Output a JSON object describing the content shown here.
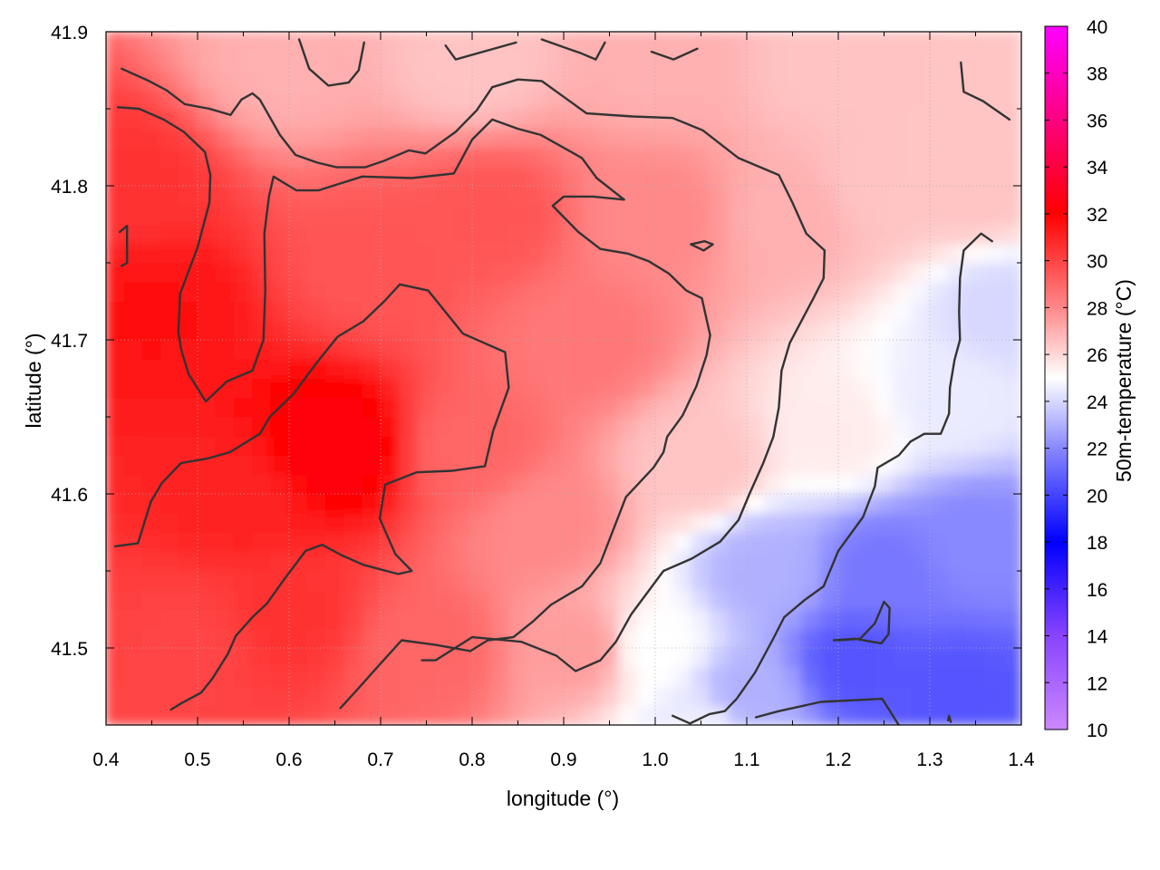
{
  "chart_data": {
    "type": "heatmap",
    "title": "",
    "xlabel": "longitude (°)",
    "ylabel": "latitude (°)",
    "colorbar_label": "50m-temperature (°C)",
    "xlim": [
      0.4,
      1.4
    ],
    "ylim": [
      41.45,
      41.9
    ],
    "x_ticks": [
      0.4,
      0.5,
      0.6,
      0.7,
      0.8,
      0.9,
      1.0,
      1.1,
      1.2,
      1.3,
      1.4
    ],
    "x_tick_labels": [
      "0.4",
      "0.5",
      "0.6",
      "0.7",
      "0.8",
      "0.9",
      "1.0",
      "1.1",
      "1.2",
      "1.3",
      "1.4"
    ],
    "y_ticks": [
      41.5,
      41.6,
      41.7,
      41.8,
      41.9
    ],
    "y_tick_labels": [
      "41.5",
      "41.6",
      "41.7",
      "41.8",
      "41.9"
    ],
    "colorbar_range": [
      10,
      40
    ],
    "colorbar_ticks": [
      10,
      12,
      14,
      16,
      18,
      20,
      22,
      24,
      26,
      28,
      30,
      32,
      34,
      36,
      38,
      40
    ],
    "colorbar_tick_labels": [
      "10",
      "12",
      "14",
      "16",
      "18",
      "20",
      "22",
      "24",
      "26",
      "28",
      "30",
      "32",
      "34",
      "36",
      "38",
      "40"
    ],
    "grid": true,
    "colormap": [
      {
        "value": 10,
        "color": "#cc88ff"
      },
      {
        "value": 14,
        "color": "#8844ff"
      },
      {
        "value": 18,
        "color": "#0000ff"
      },
      {
        "value": 22,
        "color": "#8888ff"
      },
      {
        "value": 25,
        "color": "#ffffff"
      },
      {
        "value": 28,
        "color": "#ff8888"
      },
      {
        "value": 32,
        "color": "#ff0000"
      },
      {
        "value": 36,
        "color": "#ff0080"
      },
      {
        "value": 40,
        "color": "#ff00ff"
      }
    ],
    "field_samples": [
      {
        "lon": 0.45,
        "lat": 41.72,
        "t": 31.5
      },
      {
        "lon": 0.42,
        "lat": 41.8,
        "t": 30.5
      },
      {
        "lon": 0.55,
        "lat": 41.6,
        "t": 31
      },
      {
        "lon": 0.65,
        "lat": 41.63,
        "t": 32.5
      },
      {
        "lon": 0.6,
        "lat": 41.52,
        "t": 30.5
      },
      {
        "lon": 0.5,
        "lat": 41.5,
        "t": 30
      },
      {
        "lon": 0.7,
        "lat": 41.75,
        "t": 29.5
      },
      {
        "lon": 0.82,
        "lat": 41.78,
        "t": 29.5
      },
      {
        "lon": 0.8,
        "lat": 41.63,
        "t": 29
      },
      {
        "lon": 0.92,
        "lat": 41.7,
        "t": 28.5
      },
      {
        "lon": 0.88,
        "lat": 41.58,
        "t": 28
      },
      {
        "lon": 0.75,
        "lat": 41.5,
        "t": 29
      },
      {
        "lon": 0.92,
        "lat": 41.5,
        "t": 27.5
      },
      {
        "lon": 1.0,
        "lat": 41.78,
        "t": 28
      },
      {
        "lon": 1.05,
        "lat": 41.62,
        "t": 26.5
      },
      {
        "lon": 1.0,
        "lat": 41.5,
        "t": 25
      },
      {
        "lon": 1.15,
        "lat": 41.78,
        "t": 27
      },
      {
        "lon": 1.25,
        "lat": 41.8,
        "t": 26.5
      },
      {
        "lon": 1.35,
        "lat": 41.8,
        "t": 26.5
      },
      {
        "lon": 0.6,
        "lat": 41.88,
        "t": 27
      },
      {
        "lon": 0.8,
        "lat": 41.88,
        "t": 26.5
      },
      {
        "lon": 1.0,
        "lat": 41.88,
        "t": 27
      },
      {
        "lon": 1.2,
        "lat": 41.88,
        "t": 26.5
      },
      {
        "lon": 1.38,
        "lat": 41.72,
        "t": 24
      },
      {
        "lon": 1.32,
        "lat": 41.66,
        "t": 24.5
      },
      {
        "lon": 1.2,
        "lat": 41.64,
        "t": 25.5
      },
      {
        "lon": 1.12,
        "lat": 41.55,
        "t": 23
      },
      {
        "lon": 1.25,
        "lat": 41.55,
        "t": 21.5
      },
      {
        "lon": 1.35,
        "lat": 41.57,
        "t": 22
      },
      {
        "lon": 1.22,
        "lat": 41.49,
        "t": 20.5
      },
      {
        "lon": 1.1,
        "lat": 41.47,
        "t": 23
      },
      {
        "lon": 1.33,
        "lat": 41.47,
        "t": 20.5
      },
      {
        "lon": 1.05,
        "lat": 41.45,
        "t": 24.5
      }
    ],
    "contours": [
      [
        [
          0.417,
          41.876
        ],
        [
          0.447,
          41.868
        ],
        [
          0.466,
          41.862
        ],
        [
          0.486,
          41.853
        ],
        [
          0.513,
          41.85
        ],
        [
          0.536,
          41.846
        ],
        [
          0.548,
          41.856
        ],
        [
          0.56,
          41.86
        ],
        [
          0.568,
          41.856
        ],
        [
          0.59,
          41.833
        ],
        [
          0.607,
          41.82
        ],
        [
          0.631,
          41.815
        ],
        [
          0.652,
          41.812
        ],
        [
          0.683,
          41.812
        ],
        [
          0.703,
          41.816
        ],
        [
          0.731,
          41.823
        ],
        [
          0.749,
          41.821
        ],
        [
          0.782,
          41.835
        ],
        [
          0.805,
          41.849
        ],
        [
          0.822,
          41.864
        ],
        [
          0.85,
          41.869
        ],
        [
          0.876,
          41.868
        ],
        [
          0.897,
          41.859
        ],
        [
          0.925,
          41.847
        ],
        [
          0.975,
          41.845
        ],
        [
          1.019,
          41.844
        ],
        [
          1.052,
          41.836
        ],
        [
          1.091,
          41.818
        ],
        [
          1.135,
          41.807
        ],
        [
          1.15,
          41.789
        ],
        [
          1.165,
          41.769
        ],
        [
          1.185,
          41.758
        ],
        [
          1.184,
          41.74
        ],
        [
          1.172,
          41.726
        ],
        [
          1.147,
          41.698
        ],
        [
          1.138,
          41.68
        ],
        [
          1.135,
          41.656
        ],
        [
          1.129,
          41.637
        ],
        [
          1.118,
          41.62
        ],
        [
          1.103,
          41.6
        ],
        [
          1.091,
          41.583
        ],
        [
          1.071,
          41.569
        ],
        [
          1.04,
          41.558
        ],
        [
          1.009,
          41.55
        ],
        [
          0.974,
          41.522
        ],
        [
          0.957,
          41.504
        ],
        [
          0.94,
          41.492
        ],
        [
          0.913,
          41.485
        ],
        [
          0.892,
          41.495
        ],
        [
          0.854,
          41.504
        ],
        [
          0.819,
          41.506
        ],
        [
          0.8,
          41.507
        ],
        [
          0.76,
          41.492
        ],
        [
          0.745,
          41.492
        ]
      ],
      [
        [
          0.413,
          41.851
        ],
        [
          0.436,
          41.85
        ],
        [
          0.463,
          41.843
        ],
        [
          0.485,
          41.835
        ],
        [
          0.508,
          41.822
        ],
        [
          0.514,
          41.807
        ],
        [
          0.513,
          41.789
        ],
        [
          0.5,
          41.76
        ],
        [
          0.481,
          41.73
        ],
        [
          0.479,
          41.705
        ],
        [
          0.482,
          41.694
        ],
        [
          0.49,
          41.678
        ],
        [
          0.509,
          41.66
        ],
        [
          0.532,
          41.673
        ],
        [
          0.56,
          41.68
        ],
        [
          0.572,
          41.7
        ],
        [
          0.574,
          41.732
        ],
        [
          0.573,
          41.769
        ],
        [
          0.578,
          41.793
        ],
        [
          0.583,
          41.806
        ],
        [
          0.608,
          41.797
        ],
        [
          0.632,
          41.797
        ],
        [
          0.68,
          41.806
        ],
        [
          0.734,
          41.805
        ],
        [
          0.78,
          41.808
        ],
        [
          0.8,
          41.83
        ],
        [
          0.822,
          41.843
        ],
        [
          0.85,
          41.837
        ],
        [
          0.875,
          41.833
        ],
        [
          0.92,
          41.818
        ],
        [
          0.936,
          41.805
        ],
        [
          0.966,
          41.791
        ],
        [
          0.932,
          41.793
        ],
        [
          0.9,
          41.793
        ],
        [
          0.888,
          41.787
        ],
        [
          0.916,
          41.77
        ],
        [
          0.94,
          41.759
        ],
        [
          0.97,
          41.756
        ],
        [
          0.993,
          41.751
        ],
        [
          1.015,
          41.743
        ],
        [
          1.034,
          41.732
        ],
        [
          1.051,
          41.727
        ],
        [
          1.06,
          41.703
        ],
        [
          1.056,
          41.69
        ],
        [
          1.045,
          41.67
        ],
        [
          1.03,
          41.651
        ],
        [
          1.013,
          41.637
        ],
        [
          1.009,
          41.627
        ],
        [
          0.998,
          41.617
        ],
        [
          0.968,
          41.598
        ],
        [
          0.94,
          41.555
        ],
        [
          0.92,
          41.54
        ],
        [
          0.886,
          41.528
        ],
        [
          0.866,
          41.517
        ],
        [
          0.845,
          41.507
        ],
        [
          0.817,
          41.505
        ],
        [
          0.798,
          41.498
        ],
        [
          0.76,
          41.502
        ],
        [
          0.723,
          41.505
        ],
        [
          0.697,
          41.488
        ],
        [
          0.67,
          41.47
        ],
        [
          0.656,
          41.461
        ]
      ],
      [
        [
          0.41,
          41.566
        ],
        [
          0.435,
          41.568
        ],
        [
          0.449,
          41.595
        ],
        [
          0.461,
          41.607
        ],
        [
          0.482,
          41.62
        ],
        [
          0.511,
          41.623
        ],
        [
          0.535,
          41.627
        ],
        [
          0.568,
          41.639
        ],
        [
          0.579,
          41.65
        ],
        [
          0.605,
          41.665
        ],
        [
          0.63,
          41.685
        ],
        [
          0.653,
          41.702
        ],
        [
          0.681,
          41.712
        ],
        [
          0.704,
          41.725
        ],
        [
          0.721,
          41.736
        ],
        [
          0.752,
          41.732
        ],
        [
          0.79,
          41.704
        ],
        [
          0.836,
          41.692
        ],
        [
          0.84,
          41.669
        ],
        [
          0.823,
          41.641
        ],
        [
          0.814,
          41.618
        ],
        [
          0.778,
          41.615
        ],
        [
          0.739,
          41.614
        ],
        [
          0.705,
          41.606
        ],
        [
          0.699,
          41.584
        ],
        [
          0.716,
          41.561
        ],
        [
          0.734,
          41.55
        ],
        [
          0.719,
          41.548
        ],
        [
          0.681,
          41.554
        ],
        [
          0.658,
          41.56
        ],
        [
          0.636,
          41.567
        ],
        [
          0.618,
          41.563
        ],
        [
          0.594,
          41.544
        ],
        [
          0.576,
          41.529
        ],
        [
          0.56,
          41.52
        ],
        [
          0.542,
          41.508
        ],
        [
          0.533,
          41.496
        ],
        [
          0.516,
          41.48
        ],
        [
          0.504,
          41.471
        ],
        [
          0.482,
          41.464
        ],
        [
          0.471,
          41.46
        ]
      ],
      [
        [
          0.415,
          41.77
        ],
        [
          0.423,
          41.774
        ],
        [
          0.423,
          41.75
        ],
        [
          0.417,
          41.748
        ]
      ],
      [
        [
          0.611,
          41.895
        ],
        [
          0.622,
          41.876
        ],
        [
          0.643,
          41.865
        ],
        [
          0.665,
          41.867
        ],
        [
          0.676,
          41.875
        ],
        [
          0.682,
          41.893
        ]
      ],
      [
        [
          0.771,
          41.891
        ],
        [
          0.782,
          41.882
        ],
        [
          0.818,
          41.888
        ],
        [
          0.848,
          41.893
        ]
      ],
      [
        [
          0.876,
          41.895
        ],
        [
          0.919,
          41.886
        ],
        [
          0.935,
          41.882
        ],
        [
          0.945,
          41.893
        ]
      ],
      [
        [
          0.996,
          41.887
        ],
        [
          1.02,
          41.882
        ],
        [
          1.046,
          41.889
        ]
      ],
      [
        [
          1.039,
          41.762
        ],
        [
          1.054,
          41.764
        ],
        [
          1.063,
          41.762
        ],
        [
          1.053,
          41.758
        ],
        [
          1.039,
          41.762
        ]
      ],
      [
        [
          1.334,
          41.88
        ],
        [
          1.337,
          41.861
        ],
        [
          1.358,
          41.855
        ],
        [
          1.387,
          41.843
        ]
      ],
      [
        [
          1.368,
          41.764
        ],
        [
          1.356,
          41.769
        ],
        [
          1.337,
          41.758
        ],
        [
          1.333,
          41.74
        ],
        [
          1.332,
          41.718
        ],
        [
          1.333,
          41.7
        ],
        [
          1.327,
          41.687
        ],
        [
          1.322,
          41.669
        ],
        [
          1.321,
          41.652
        ],
        [
          1.312,
          41.639
        ],
        [
          1.294,
          41.639
        ],
        [
          1.279,
          41.634
        ],
        [
          1.266,
          41.625
        ],
        [
          1.243,
          41.617
        ],
        [
          1.24,
          41.605
        ],
        [
          1.227,
          41.585
        ],
        [
          1.2,
          41.563
        ],
        [
          1.184,
          41.54
        ],
        [
          1.163,
          41.531
        ],
        [
          1.141,
          41.52
        ],
        [
          1.128,
          41.505
        ],
        [
          1.109,
          41.484
        ],
        [
          1.089,
          41.467
        ],
        [
          1.076,
          41.459
        ],
        [
          1.059,
          41.457
        ],
        [
          1.038,
          41.451
        ],
        [
          1.019,
          41.456
        ]
      ],
      [
        [
          1.195,
          41.505
        ],
        [
          1.218,
          41.506
        ],
        [
          1.247,
          41.503
        ],
        [
          1.255,
          41.509
        ],
        [
          1.256,
          41.526
        ],
        [
          1.25,
          41.53
        ],
        [
          1.24,
          41.516
        ],
        [
          1.224,
          41.506
        ],
        [
          1.2,
          41.505
        ]
      ],
      [
        [
          1.11,
          41.455
        ],
        [
          1.135,
          41.459
        ],
        [
          1.181,
          41.465
        ],
        [
          1.248,
          41.467
        ],
        [
          1.266,
          41.45
        ]
      ],
      [
        [
          1.32,
          41.453
        ],
        [
          1.321,
          41.456
        ],
        [
          1.323,
          41.452
        ]
      ]
    ]
  }
}
